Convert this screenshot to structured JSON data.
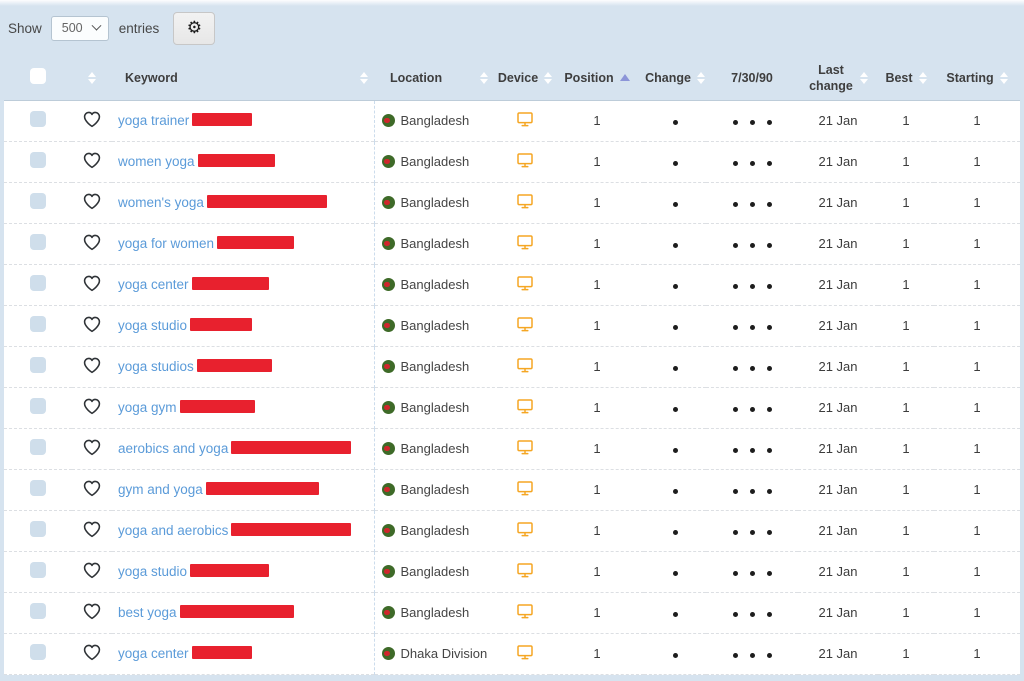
{
  "toolbar": {
    "show_label": "Show",
    "entries_label": "entries",
    "page_size": "500",
    "gear_icon": "gear-settings"
  },
  "header": {
    "keyword": "Keyword",
    "location": "Location",
    "device": "Device",
    "position": "Position",
    "change": "Change",
    "trend": "7/30/90",
    "last_change": "Last change",
    "best": "Best",
    "starting": "Starting",
    "sorted_column": "Position",
    "sort_direction": "ascending"
  },
  "rows": [
    {
      "keyword": "yoga trainer",
      "redacted_width": 60,
      "location": "Bangladesh",
      "device": "desktop",
      "position": "1",
      "change_dots": 1,
      "trend_dots": 3,
      "last_change": "21 Jan",
      "best": "1",
      "starting": "1"
    },
    {
      "keyword": "women yoga",
      "redacted_width": 77,
      "location": "Bangladesh",
      "device": "desktop",
      "position": "1",
      "change_dots": 1,
      "trend_dots": 3,
      "last_change": "21 Jan",
      "best": "1",
      "starting": "1"
    },
    {
      "keyword": "women's yoga",
      "redacted_width": 120,
      "location": "Bangladesh",
      "device": "desktop",
      "position": "1",
      "change_dots": 1,
      "trend_dots": 3,
      "last_change": "21 Jan",
      "best": "1",
      "starting": "1"
    },
    {
      "keyword": "yoga for women",
      "redacted_width": 77,
      "location": "Bangladesh",
      "device": "desktop",
      "position": "1",
      "change_dots": 1,
      "trend_dots": 3,
      "last_change": "21 Jan",
      "best": "1",
      "starting": "1"
    },
    {
      "keyword": "yoga center",
      "redacted_width": 77,
      "location": "Bangladesh",
      "device": "desktop",
      "position": "1",
      "change_dots": 1,
      "trend_dots": 3,
      "last_change": "21 Jan",
      "best": "1",
      "starting": "1"
    },
    {
      "keyword": "yoga studio",
      "redacted_width": 62,
      "location": "Bangladesh",
      "device": "desktop",
      "position": "1",
      "change_dots": 1,
      "trend_dots": 3,
      "last_change": "21 Jan",
      "best": "1",
      "starting": "1"
    },
    {
      "keyword": "yoga studios",
      "redacted_width": 75,
      "location": "Bangladesh",
      "device": "desktop",
      "position": "1",
      "change_dots": 1,
      "trend_dots": 3,
      "last_change": "21 Jan",
      "best": "1",
      "starting": "1"
    },
    {
      "keyword": "yoga gym",
      "redacted_width": 75,
      "location": "Bangladesh",
      "device": "desktop",
      "position": "1",
      "change_dots": 1,
      "trend_dots": 3,
      "last_change": "21 Jan",
      "best": "1",
      "starting": "1"
    },
    {
      "keyword": "aerobics and yoga",
      "redacted_width": 120,
      "location": "Bangladesh",
      "device": "desktop",
      "position": "1",
      "change_dots": 1,
      "trend_dots": 3,
      "last_change": "21 Jan",
      "best": "1",
      "starting": "1"
    },
    {
      "keyword": "gym and yoga",
      "redacted_width": 113,
      "location": "Bangladesh",
      "device": "desktop",
      "position": "1",
      "change_dots": 1,
      "trend_dots": 3,
      "last_change": "21 Jan",
      "best": "1",
      "starting": "1"
    },
    {
      "keyword": "yoga and aerobics",
      "redacted_width": 120,
      "location": "Bangladesh",
      "device": "desktop",
      "position": "1",
      "change_dots": 1,
      "trend_dots": 3,
      "last_change": "21 Jan",
      "best": "1",
      "starting": "1"
    },
    {
      "keyword": "yoga studio",
      "redacted_width": 79,
      "location": "Bangladesh",
      "device": "desktop",
      "position": "1",
      "change_dots": 1,
      "trend_dots": 3,
      "last_change": "21 Jan",
      "best": "1",
      "starting": "1"
    },
    {
      "keyword": "best yoga",
      "redacted_width": 114,
      "location": "Bangladesh",
      "device": "desktop",
      "position": "1",
      "change_dots": 1,
      "trend_dots": 3,
      "last_change": "21 Jan",
      "best": "1",
      "starting": "1"
    },
    {
      "keyword": "yoga center",
      "redacted_width": 60,
      "location": "Dhaka Division",
      "device": "desktop",
      "position": "1",
      "change_dots": 1,
      "trend_dots": 3,
      "last_change": "21 Jan",
      "best": "1",
      "starting": "1"
    }
  ],
  "colors": {
    "header_bg": "#d6e3ef",
    "keyword_link": "#5b9bd9",
    "redaction_red": "#e8212e",
    "device_orange": "#f5a623",
    "flag_green": "#3e6a28",
    "flag_red": "#d0262c",
    "sort_active": "#8c95d8"
  }
}
